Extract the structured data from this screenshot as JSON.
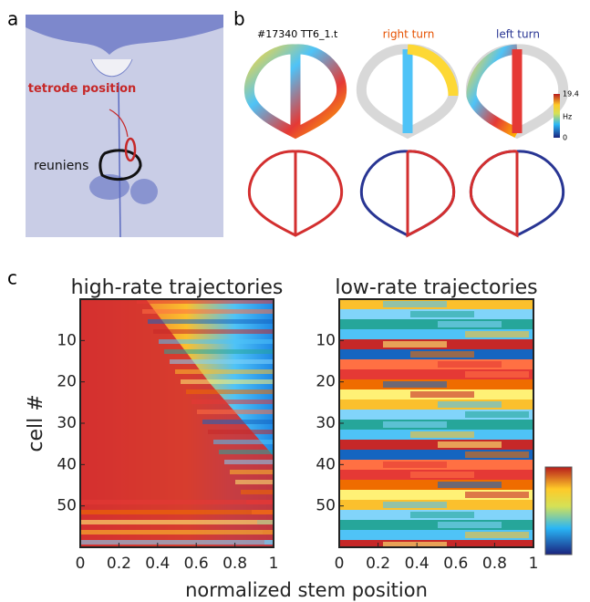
{
  "panel_labels": {
    "a": "a",
    "b": "b",
    "c": "c"
  },
  "panel_a": {
    "annotation": "tetrode position",
    "region": "reuniens"
  },
  "panel_b": {
    "cell_id": "#17340 TT6_1.t",
    "titles": [
      "right turn",
      "left turn"
    ],
    "colorbar": {
      "max": 19.4,
      "unit": "Hz",
      "min": 0
    }
  },
  "chart_data": [
    {
      "type": "heatmap",
      "title": "high-rate trajectories",
      "xlabel": "normalized stem position",
      "ylabel": "cell #",
      "xlim": [
        0,
        1
      ],
      "ylim": [
        0,
        60
      ],
      "xticks": [
        0,
        0.2,
        0.4,
        0.6,
        0.8,
        1
      ],
      "yticks": [
        10,
        20,
        30,
        40,
        50
      ]
    },
    {
      "type": "heatmap",
      "title": "low-rate trajectories",
      "xlim": [
        0,
        1
      ],
      "ylim": [
        0,
        60
      ],
      "xticks": [
        0,
        0.2,
        0.4,
        0.6,
        0.8,
        1
      ],
      "yticks": [
        10,
        20,
        30,
        40,
        50
      ]
    }
  ]
}
